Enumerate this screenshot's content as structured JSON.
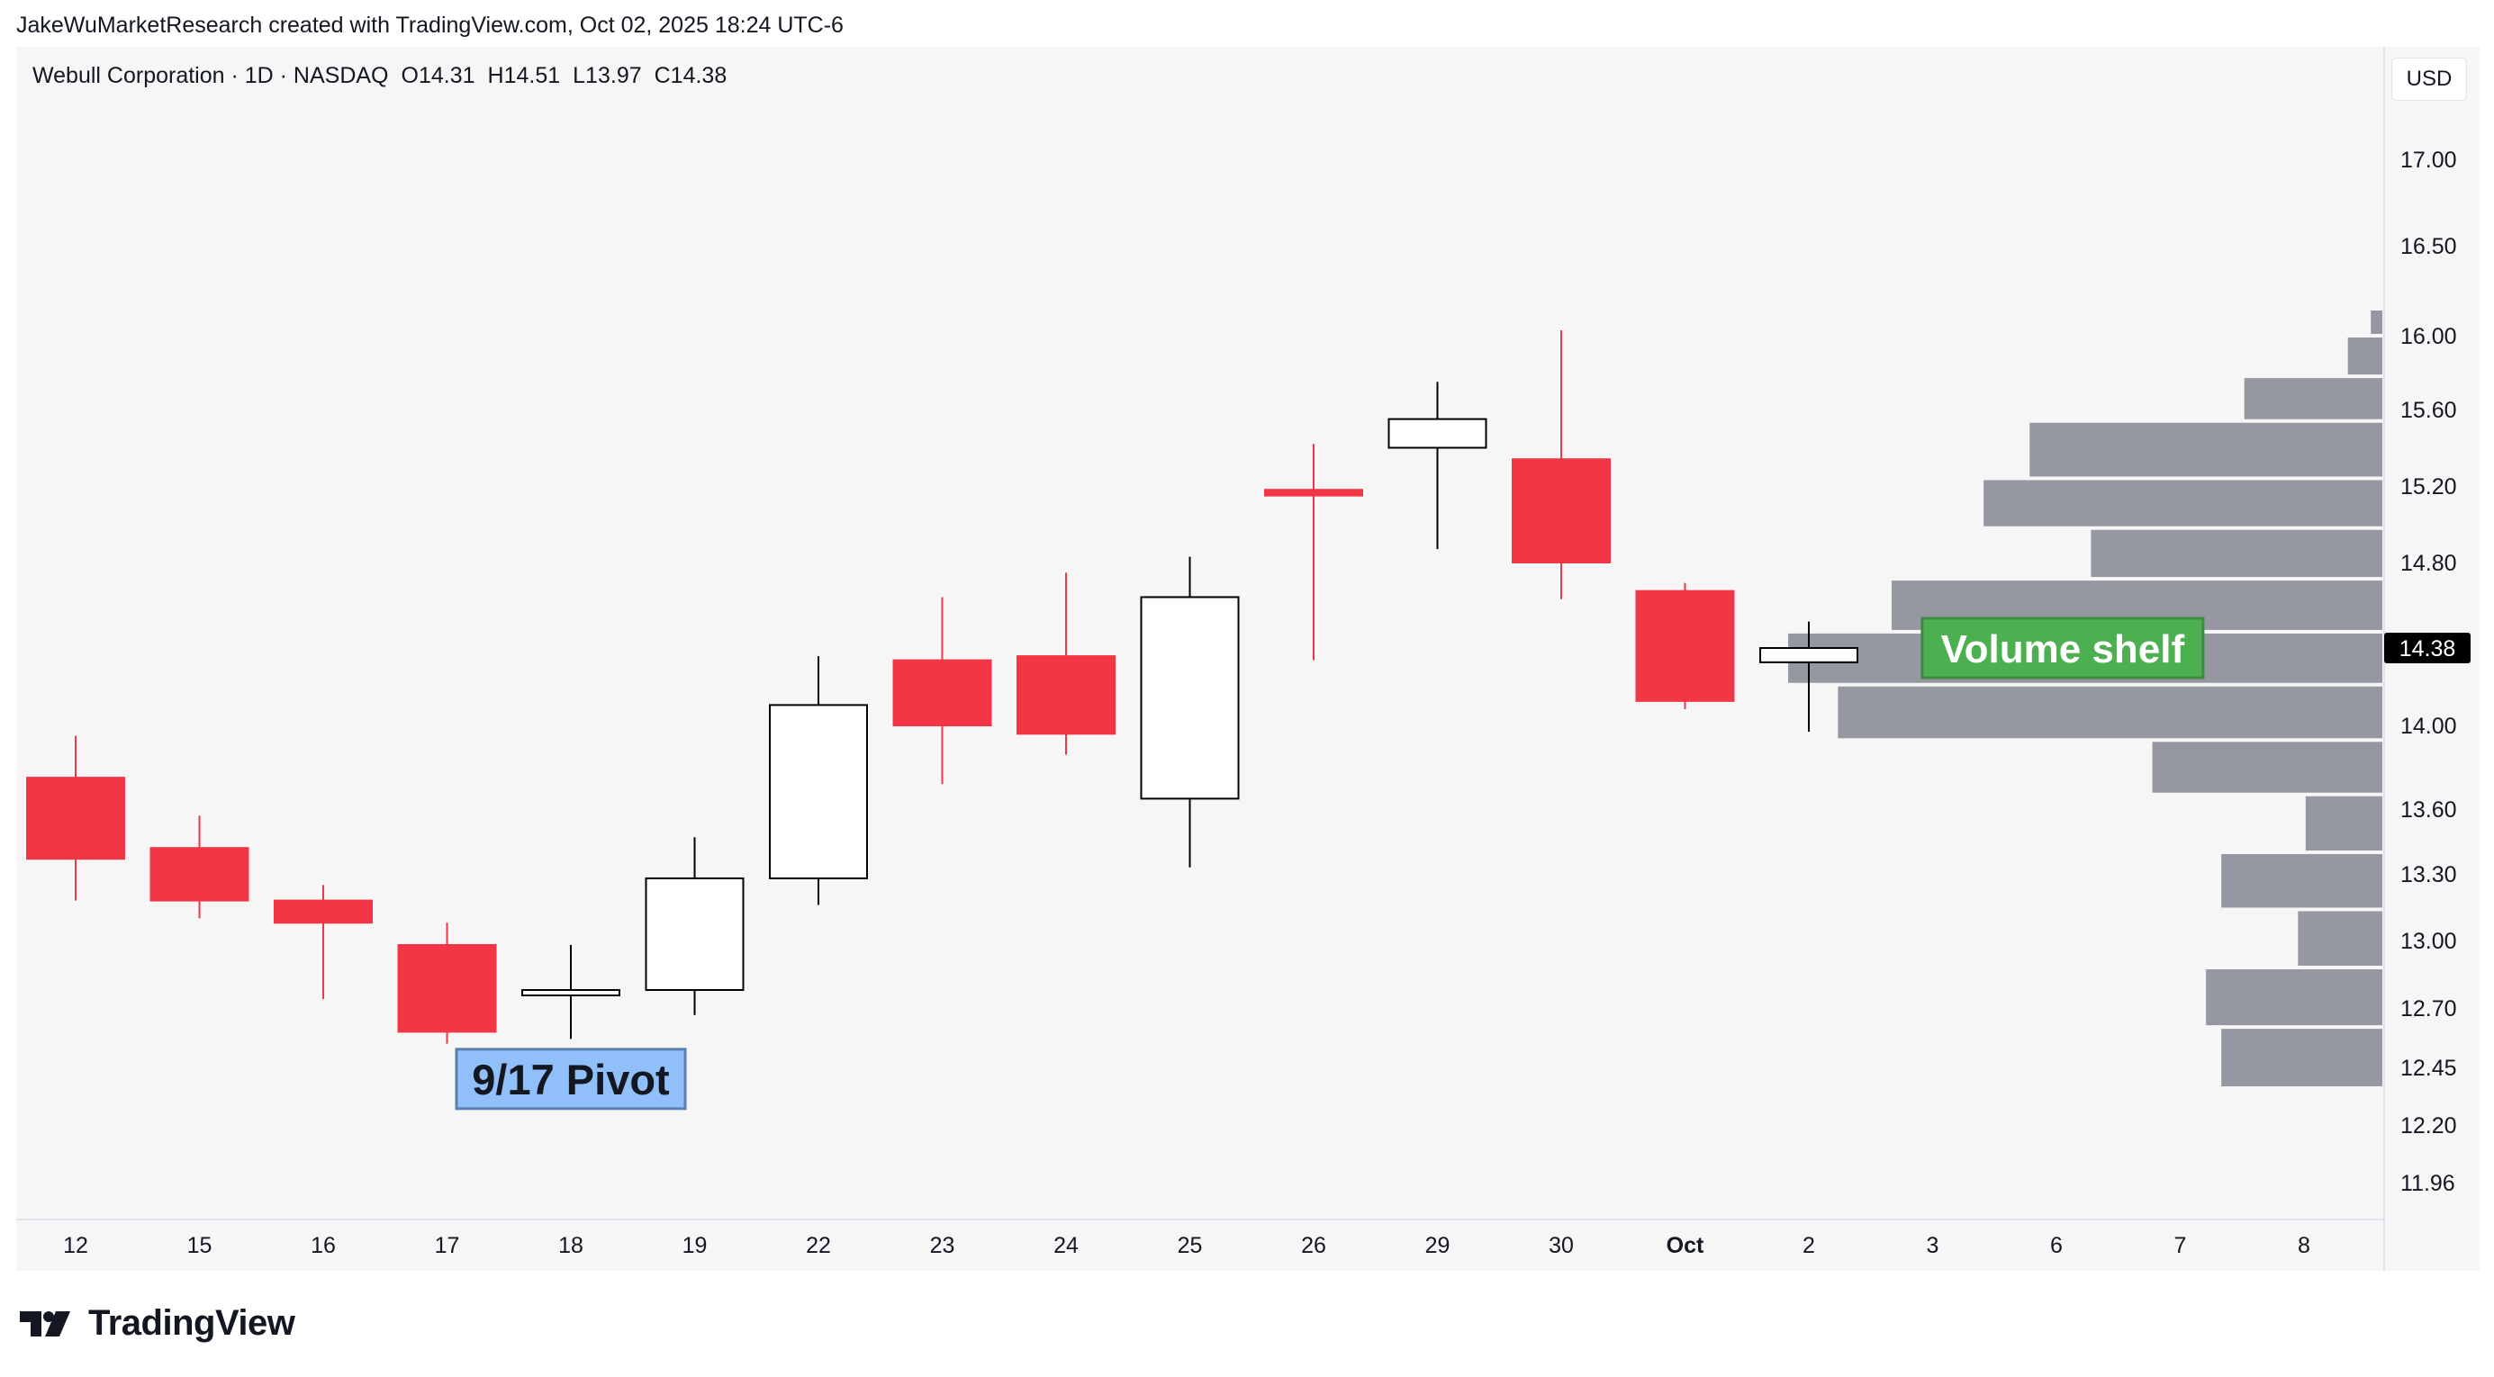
{
  "credit": "JakeWuMarketResearch created with TradingView.com, Oct 02, 2025 18:24 UTC-6",
  "legend": {
    "title": "Webull Corporation · 1D · NASDAQ",
    "open": "O14.31",
    "high": "H14.51",
    "low": "L13.97",
    "close": "C14.38"
  },
  "currency_button": "USD",
  "footer_logo_text": "TradingView",
  "colors": {
    "down": "#f23645",
    "up": "#ffffff",
    "outline": "#000000",
    "volume": "#9598a1",
    "current_price_bg": "#000000",
    "annotation_green": "#4caf50",
    "annotation_blue": "#90bff9"
  },
  "chart_data": {
    "type": "candlestick",
    "title": "Webull Corporation · 1D · NASDAQ",
    "x_tick_labels": [
      "12",
      "15",
      "16",
      "17",
      "18",
      "19",
      "22",
      "23",
      "24",
      "25",
      "26",
      "29",
      "30",
      "Oct",
      "2",
      "3",
      "6",
      "7",
      "8"
    ],
    "y_tick_labels": [
      "17.00",
      "16.50",
      "16.00",
      "15.60",
      "15.20",
      "14.80",
      "14.00",
      "13.60",
      "13.30",
      "13.00",
      "12.70",
      "12.45",
      "12.20",
      "11.96"
    ],
    "y_tick_values": [
      17.0,
      16.5,
      16.0,
      15.6,
      15.2,
      14.8,
      14.0,
      13.6,
      13.3,
      13.0,
      12.7,
      12.45,
      12.2,
      11.96
    ],
    "current_price_label": "14.38",
    "current_price": 14.38,
    "candles": [
      {
        "date": "12",
        "open": 13.75,
        "high": 13.95,
        "low": 13.18,
        "close": 13.37
      },
      {
        "date": "15",
        "open": 13.42,
        "high": 13.57,
        "low": 13.1,
        "close": 13.18
      },
      {
        "date": "16",
        "open": 13.18,
        "high": 13.25,
        "low": 12.74,
        "close": 13.08
      },
      {
        "date": "17",
        "open": 12.98,
        "high": 13.08,
        "low": 12.55,
        "close": 12.6
      },
      {
        "date": "18",
        "open": 12.76,
        "high": 12.98,
        "low": 12.57,
        "close": 12.78
      },
      {
        "date": "19",
        "open": 12.78,
        "high": 13.47,
        "low": 12.67,
        "close": 13.28
      },
      {
        "date": "22",
        "open": 13.28,
        "high": 14.34,
        "low": 13.16,
        "close": 14.1
      },
      {
        "date": "23",
        "open": 14.32,
        "high": 14.63,
        "low": 13.72,
        "close": 14.0
      },
      {
        "date": "24",
        "open": 14.34,
        "high": 14.75,
        "low": 13.86,
        "close": 13.96
      },
      {
        "date": "25",
        "open": 13.65,
        "high": 14.83,
        "low": 13.33,
        "close": 14.63
      },
      {
        "date": "26",
        "open": 15.18,
        "high": 15.42,
        "low": 14.32,
        "close": 15.15
      },
      {
        "date": "29",
        "open": 15.4,
        "high": 15.75,
        "low": 14.87,
        "close": 15.55
      },
      {
        "date": "30",
        "open": 15.34,
        "high": 16.03,
        "low": 14.62,
        "close": 14.8
      },
      {
        "date": "Oct",
        "open": 14.66,
        "high": 14.7,
        "low": 14.08,
        "close": 14.12
      },
      {
        "date": "2",
        "open": 14.31,
        "high": 14.51,
        "low": 13.97,
        "close": 14.38
      }
    ],
    "volume_profile": [
      {
        "price_low": 16.0,
        "price_high": 16.15,
        "volume": 3
      },
      {
        "price_low": 15.78,
        "price_high": 16.0,
        "volume": 9
      },
      {
        "price_low": 15.54,
        "price_high": 15.78,
        "volume": 36
      },
      {
        "price_low": 15.24,
        "price_high": 15.54,
        "volume": 92
      },
      {
        "price_low": 14.98,
        "price_high": 15.24,
        "volume": 104
      },
      {
        "price_low": 14.72,
        "price_high": 14.98,
        "volume": 76
      },
      {
        "price_low": 14.46,
        "price_high": 14.72,
        "volume": 128
      },
      {
        "price_low": 14.2,
        "price_high": 14.46,
        "volume": 155
      },
      {
        "price_low": 13.93,
        "price_high": 14.2,
        "volume": 142
      },
      {
        "price_low": 13.67,
        "price_high": 13.93,
        "volume": 60
      },
      {
        "price_low": 13.4,
        "price_high": 13.67,
        "volume": 20
      },
      {
        "price_low": 13.14,
        "price_high": 13.4,
        "volume": 42
      },
      {
        "price_low": 12.88,
        "price_high": 13.14,
        "volume": 22
      },
      {
        "price_low": 12.62,
        "price_high": 12.88,
        "volume": 46
      },
      {
        "price_low": 12.36,
        "price_high": 12.62,
        "volume": 42
      }
    ],
    "annotations": [
      {
        "text": "9/17 Pivot",
        "date": "18",
        "price": 12.4,
        "style": "blue"
      },
      {
        "text": "Volume shelf",
        "date": "4",
        "price": 14.38,
        "style": "green"
      }
    ]
  }
}
